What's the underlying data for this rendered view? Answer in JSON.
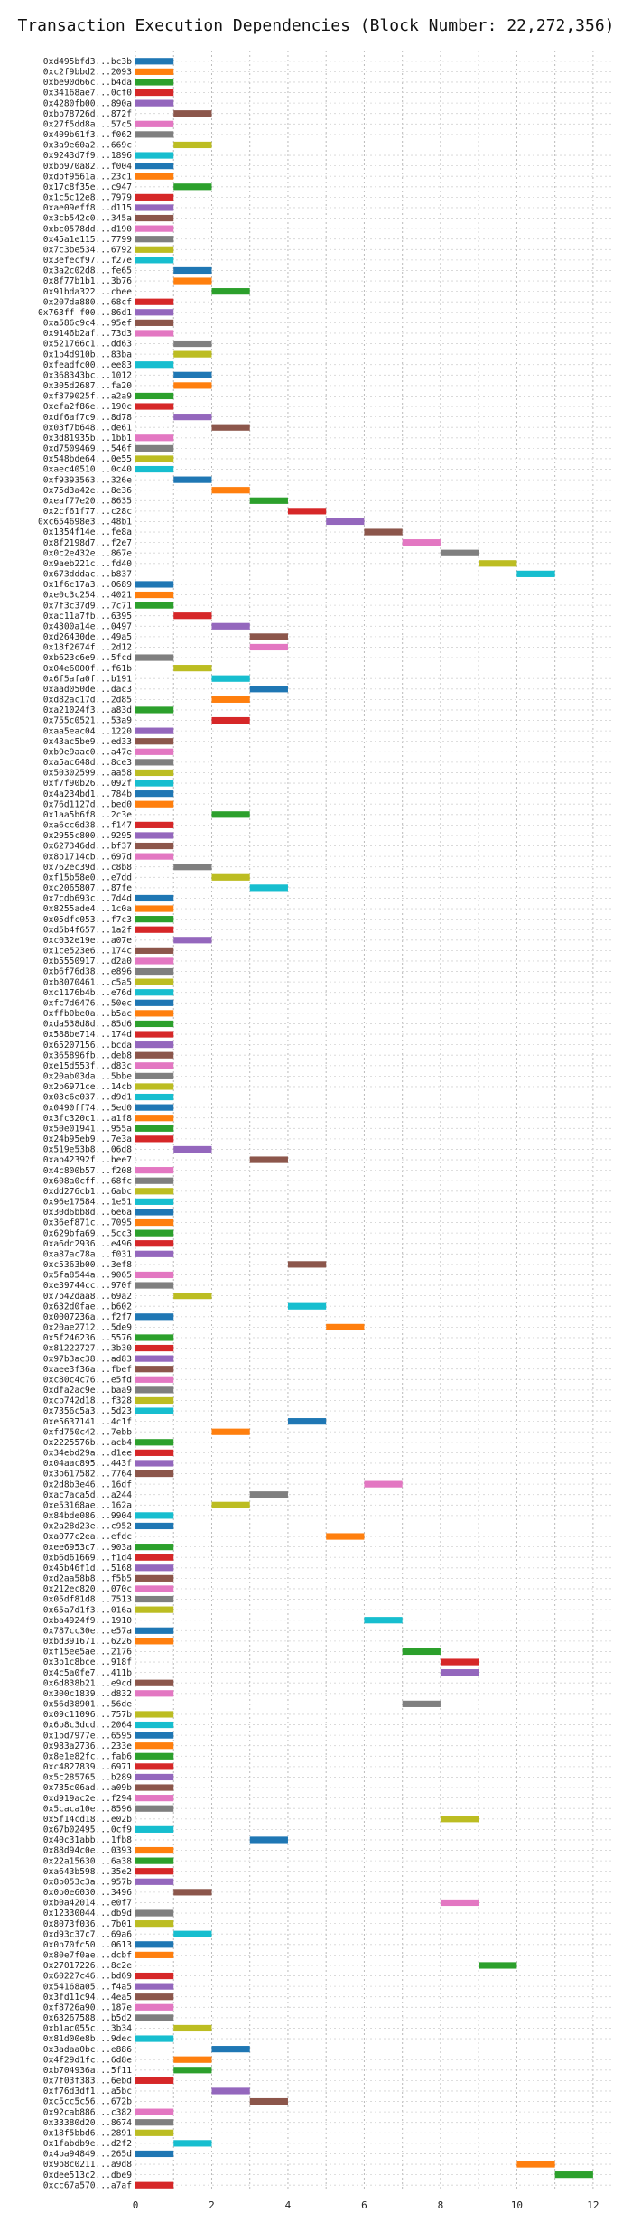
{
  "chart_data": {
    "type": "gantt",
    "title": "Transaction Execution Dependencies (Block Number: 22,272,356)",
    "xlim": [
      0,
      12.5
    ],
    "x_ticks": [
      0,
      2,
      4,
      6,
      8,
      10,
      12
    ],
    "grid": true,
    "palette": [
      "#1f77b4",
      "#ff7f0e",
      "#2ca02c",
      "#d62728",
      "#9467bd",
      "#8c564b",
      "#e377c2",
      "#7f7f7f",
      "#bcbd22",
      "#17becf"
    ],
    "transactions": [
      {
        "label": "0xd495bfd3...bc3b",
        "start": 0
      },
      {
        "label": "0xc2f9bbd2...2093",
        "start": 0
      },
      {
        "label": "0xbe90d66c...b4da",
        "start": 0
      },
      {
        "label": "0x34168ae7...0cf0",
        "start": 0
      },
      {
        "label": "0x4280fb00...890a",
        "start": 0
      },
      {
        "label": "0xbb78726d...872f",
        "start": 1
      },
      {
        "label": "0x27f5dd8a...57c5",
        "start": 0
      },
      {
        "label": "0x409b61f3...f062",
        "start": 0
      },
      {
        "label": "0x3a9e60a2...669c",
        "start": 1
      },
      {
        "label": "0x9243d7f9...1896",
        "start": 0
      },
      {
        "label": "0xbb970a82...f004",
        "start": 0
      },
      {
        "label": "0xdbf9561a...23c1",
        "start": 0
      },
      {
        "label": "0x17c8f35e...c947",
        "start": 1
      },
      {
        "label": "0x1c5c12e8...7979",
        "start": 0
      },
      {
        "label": "0xae09eff8...d115",
        "start": 0
      },
      {
        "label": "0x3cb542c0...345a",
        "start": 0
      },
      {
        "label": "0xbc0578dd...d190",
        "start": 0
      },
      {
        "label": "0x45a1e115...7799",
        "start": 0
      },
      {
        "label": "0x7c3be534...6792",
        "start": 0
      },
      {
        "label": "0x3efecf97...f27e",
        "start": 0
      },
      {
        "label": "0x3a2c02d8...fe65",
        "start": 1
      },
      {
        "label": "0x8f77b1b1...3b76",
        "start": 1
      },
      {
        "label": "0x91bda322...cbee",
        "start": 2
      },
      {
        "label": "0x207da880...68cf",
        "start": 0
      },
      {
        "label": "0x763ff f00...86d1",
        "start": 0
      },
      {
        "label": "0xa586c9c4...95ef",
        "start": 0
      },
      {
        "label": "0x9146b2af...73d3",
        "start": 0
      },
      {
        "label": "0x521766c1...dd63",
        "start": 1
      },
      {
        "label": "0x1b4d910b...83ba",
        "start": 1
      },
      {
        "label": "0xfeadfc00...ee83",
        "start": 0
      },
      {
        "label": "0x368343bc...1012",
        "start": 1
      },
      {
        "label": "0x305d2687...fa20",
        "start": 1
      },
      {
        "label": "0xf379025f...a2a9",
        "start": 0
      },
      {
        "label": "0xefa2f86e...190c",
        "start": 0
      },
      {
        "label": "0xdf6af7c9...8d78",
        "start": 1
      },
      {
        "label": "0x03f7b648...de61",
        "start": 2
      },
      {
        "label": "0x3d81935b...1bb1",
        "start": 0
      },
      {
        "label": "0xd7509469...546f",
        "start": 0
      },
      {
        "label": "0x548bde64...0e55",
        "start": 0
      },
      {
        "label": "0xaec40510...0c40",
        "start": 0
      },
      {
        "label": "0xf9393563...326e",
        "start": 1
      },
      {
        "label": "0x75d3a42e...8e36",
        "start": 2
      },
      {
        "label": "0xeaf77e20...8635",
        "start": 3
      },
      {
        "label": "0x2cf61f77...c28c",
        "start": 4
      },
      {
        "label": "0xc654698e3...48b1",
        "start": 5
      },
      {
        "label": "0x1354f14e...fe8a",
        "start": 6
      },
      {
        "label": "0x8f2198d7...f2e7",
        "start": 7
      },
      {
        "label": "0x0c2e432e...867e",
        "start": 8
      },
      {
        "label": "0x9aeb221c...fd40",
        "start": 9
      },
      {
        "label": "0x673dddac...b837",
        "start": 10
      },
      {
        "label": "0x1f6c17a3...0689",
        "start": 0
      },
      {
        "label": "0xe0c3c254...4021",
        "start": 0
      },
      {
        "label": "0x7f3c37d9...7c71",
        "start": 0
      },
      {
        "label": "0xac11a7fb...6395",
        "start": 1
      },
      {
        "label": "0x4300a14e...0497",
        "start": 2
      },
      {
        "label": "0xd26430de...49a5",
        "start": 3
      },
      {
        "label": "0x18f2674f...2d12",
        "start": 3
      },
      {
        "label": "0xb623c6e9...5fcd",
        "start": 0
      },
      {
        "label": "0x04e6000f...f61b",
        "start": 1
      },
      {
        "label": "0x6f5afa0f...b191",
        "start": 2
      },
      {
        "label": "0xaad050de...dac3",
        "start": 3
      },
      {
        "label": "0xd82ac17d...2d85",
        "start": 2
      },
      {
        "label": "0xa21024f3...a83d",
        "start": 0
      },
      {
        "label": "0x755c0521...53a9",
        "start": 2
      },
      {
        "label": "0xaa5eac04...1220",
        "start": 0
      },
      {
        "label": "0x43ac5be9...ed33",
        "start": 0
      },
      {
        "label": "0xb9e9aac0...a47e",
        "start": 0
      },
      {
        "label": "0xa5ac648d...8ce3",
        "start": 0
      },
      {
        "label": "0x50302599...aa58",
        "start": 0
      },
      {
        "label": "0xf7f90b26...092f",
        "start": 0
      },
      {
        "label": "0x4a234bd1...784b",
        "start": 0
      },
      {
        "label": "0x76d1127d...bed0",
        "start": 0
      },
      {
        "label": "0x1aa5b6f8...2c3e",
        "start": 2
      },
      {
        "label": "0xa6cc6d38...f147",
        "start": 0
      },
      {
        "label": "0x2955c800...9295",
        "start": 0
      },
      {
        "label": "0x627346dd...bf37",
        "start": 0
      },
      {
        "label": "0x8b1714cb...697d",
        "start": 0
      },
      {
        "label": "0x762ec39d...c8b8",
        "start": 1
      },
      {
        "label": "0xf15b58e0...e7dd",
        "start": 2
      },
      {
        "label": "0xc2065807...87fe",
        "start": 3
      },
      {
        "label": "0x7cdb693c...7d4d",
        "start": 0
      },
      {
        "label": "0x8255ade4...1c0a",
        "start": 0
      },
      {
        "label": "0x05dfc053...f7c3",
        "start": 0
      },
      {
        "label": "0xd5b4f657...1a2f",
        "start": 0
      },
      {
        "label": "0xc032e19e...a07e",
        "start": 1
      },
      {
        "label": "0x1ce523e6...174c",
        "start": 0
      },
      {
        "label": "0xb5550917...d2a0",
        "start": 0
      },
      {
        "label": "0xb6f76d38...e896",
        "start": 0
      },
      {
        "label": "0xb8070461...c5a5",
        "start": 0
      },
      {
        "label": "0xc1176b4b...e76d",
        "start": 0
      },
      {
        "label": "0xfc7d6476...50ec",
        "start": 0
      },
      {
        "label": "0xffb0be0a...b5ac",
        "start": 0
      },
      {
        "label": "0xda538d8d...85d6",
        "start": 0
      },
      {
        "label": "0x588be714...174d",
        "start": 0
      },
      {
        "label": "0x65207156...bcda",
        "start": 0
      },
      {
        "label": "0x365896fb...deb8",
        "start": 0
      },
      {
        "label": "0xe15d553f...d83c",
        "start": 0
      },
      {
        "label": "0x20ab03da...5bbe",
        "start": 0
      },
      {
        "label": "0x2b6971ce...14cb",
        "start": 0
      },
      {
        "label": "0x03c6e037...d9d1",
        "start": 0
      },
      {
        "label": "0x0490ff74...5ed0",
        "start": 0
      },
      {
        "label": "0x3fc320c1...a1f8",
        "start": 0
      },
      {
        "label": "0x50e01941...955a",
        "start": 0
      },
      {
        "label": "0x24b95eb9...7e3a",
        "start": 0
      },
      {
        "label": "0x519e53b8...06d8",
        "start": 1
      },
      {
        "label": "0xab42392f...bee7",
        "start": 3
      },
      {
        "label": "0x4c800b57...f208",
        "start": 0
      },
      {
        "label": "0x608a0cff...68fc",
        "start": 0
      },
      {
        "label": "0xdd276cb1...6abc",
        "start": 0
      },
      {
        "label": "0x96e17584...1e51",
        "start": 0
      },
      {
        "label": "0x30d6bb8d...6e6a",
        "start": 0
      },
      {
        "label": "0x36ef871c...7095",
        "start": 0
      },
      {
        "label": "0x629bfa69...5cc3",
        "start": 0
      },
      {
        "label": "0xa6dc2936...e496",
        "start": 0
      },
      {
        "label": "0xa87ac78a...f031",
        "start": 0
      },
      {
        "label": "0xc5363b00...3ef8",
        "start": 4
      },
      {
        "label": "0x5fa8544a...9065",
        "start": 0
      },
      {
        "label": "0xe39744cc...970f",
        "start": 0
      },
      {
        "label": "0x7b42daa8...69a2",
        "start": 1
      },
      {
        "label": "0x632d0fae...b602",
        "start": 4
      },
      {
        "label": "0x0007236a...f2f7",
        "start": 0
      },
      {
        "label": "0x20ae2712...5de9",
        "start": 5
      },
      {
        "label": "0x5f246236...5576",
        "start": 0
      },
      {
        "label": "0x81222727...3b30",
        "start": 0
      },
      {
        "label": "0x97b3ac38...ad83",
        "start": 0
      },
      {
        "label": "0xaee3f36a...fbef",
        "start": 0
      },
      {
        "label": "0xc80c4c76...e5fd",
        "start": 0
      },
      {
        "label": "0xdfa2ac9e...baa9",
        "start": 0
      },
      {
        "label": "0xcb742d18...f328",
        "start": 0
      },
      {
        "label": "0x7356c5a3...5d23",
        "start": 0
      },
      {
        "label": "0xe5637141...4c1f",
        "start": 4
      },
      {
        "label": "0xfd750c42...7ebb",
        "start": 2
      },
      {
        "label": "0x2225576b...acb4",
        "start": 0
      },
      {
        "label": "0x34ebd29a...d1ee",
        "start": 0
      },
      {
        "label": "0x04aac895...443f",
        "start": 0
      },
      {
        "label": "0x3b617582...7764",
        "start": 0
      },
      {
        "label": "0x2d8b3e46...16df",
        "start": 6
      },
      {
        "label": "0xac7aca5d...a244",
        "start": 3
      },
      {
        "label": "0xe53168ae...162a",
        "start": 2
      },
      {
        "label": "0x84bde086...9904",
        "start": 0
      },
      {
        "label": "0x2a28d23e...c952",
        "start": 0
      },
      {
        "label": "0xa077c2ea...efdc",
        "start": 5
      },
      {
        "label": "0xee6953c7...903a",
        "start": 0
      },
      {
        "label": "0xb6d61669...f1d4",
        "start": 0
      },
      {
        "label": "0x45b46f1d...5168",
        "start": 0
      },
      {
        "label": "0xd2aa58b8...f5b5",
        "start": 0
      },
      {
        "label": "0x212ec820...070c",
        "start": 0
      },
      {
        "label": "0x05df81d8...7513",
        "start": 0
      },
      {
        "label": "0x65a7d1f3...016a",
        "start": 0
      },
      {
        "label": "0xba4924f9...1910",
        "start": 6
      },
      {
        "label": "0x787cc30e...e57a",
        "start": 0
      },
      {
        "label": "0xbd391671...6226",
        "start": 0
      },
      {
        "label": "0xf15ee5ae...2176",
        "start": 7
      },
      {
        "label": "0x3b1c8bce...918f",
        "start": 8
      },
      {
        "label": "0x4c5a0fe7...411b",
        "start": 8
      },
      {
        "label": "0x6d838b21...e9cd",
        "start": 0
      },
      {
        "label": "0x300c1839...d832",
        "start": 0
      },
      {
        "label": "0x56d38901...56de",
        "start": 7
      },
      {
        "label": "0x09c11096...757b",
        "start": 0
      },
      {
        "label": "0x6b8c3dcd...2064",
        "start": 0
      },
      {
        "label": "0x1bd7977e...6595",
        "start": 0
      },
      {
        "label": "0x983a2736...233e",
        "start": 0
      },
      {
        "label": "0x8e1e82fc...fab6",
        "start": 0
      },
      {
        "label": "0xc4827839...6971",
        "start": 0
      },
      {
        "label": "0x5c285765...b289",
        "start": 0
      },
      {
        "label": "0x735c06ad...a09b",
        "start": 0
      },
      {
        "label": "0xd919ac2e...f294",
        "start": 0
      },
      {
        "label": "0x5caca10e...8596",
        "start": 0
      },
      {
        "label": "0x5f14cd18...e02b",
        "start": 8
      },
      {
        "label": "0x67b02495...0cf9",
        "start": 0
      },
      {
        "label": "0x40c31abb...1fb8",
        "start": 3
      },
      {
        "label": "0x88d94c0e...0393",
        "start": 0
      },
      {
        "label": "0x22a15630...6a38",
        "start": 0
      },
      {
        "label": "0xa643b598...35e2",
        "start": 0
      },
      {
        "label": "0x8b053c3a...957b",
        "start": 0
      },
      {
        "label": "0x0b0e6030...3496",
        "start": 1
      },
      {
        "label": "0xb0a42014...e0f7",
        "start": 8
      },
      {
        "label": "0x12330044...db9d",
        "start": 0
      },
      {
        "label": "0x8073f036...7b01",
        "start": 0
      },
      {
        "label": "0xd93c37c7...69a6",
        "start": 1
      },
      {
        "label": "0x0b70fc50...0613",
        "start": 0
      },
      {
        "label": "0x80e7f0ae...dcbf",
        "start": 0
      },
      {
        "label": "0x27017226...8c2e",
        "start": 9
      },
      {
        "label": "0x60227c46...bd69",
        "start": 0
      },
      {
        "label": "0x54168a05...f4a5",
        "start": 0
      },
      {
        "label": "0x3fd11c94...4ea5",
        "start": 0
      },
      {
        "label": "0xf8726a90...187e",
        "start": 0
      },
      {
        "label": "0x63267588...b5d2",
        "start": 0
      },
      {
        "label": "0xb1ac055c...3b34",
        "start": 1
      },
      {
        "label": "0x81d00e8b...9dec",
        "start": 0
      },
      {
        "label": "0x3adaa0bc...e886",
        "start": 2
      },
      {
        "label": "0x4f29d1fc...6d8e",
        "start": 1
      },
      {
        "label": "0xb704936a...5f11",
        "start": 1
      },
      {
        "label": "0x7f03f383...6ebd",
        "start": 0
      },
      {
        "label": "0xf76d3df1...a5bc",
        "start": 2
      },
      {
        "label": "0xc5cc5c56...672b",
        "start": 3
      },
      {
        "label": "0x92cab886...c382",
        "start": 0
      },
      {
        "label": "0x33380d20...8674",
        "start": 0
      },
      {
        "label": "0x18f5bbd6...2891",
        "start": 0
      },
      {
        "label": "0x1fabdb9e...d2f2",
        "start": 1
      },
      {
        "label": "0x4ba94849...265d",
        "start": 0
      },
      {
        "label": "0x9b8c0211...a9d8",
        "start": 10
      },
      {
        "label": "0xdee513c2...dbe9",
        "start": 11
      },
      {
        "label": "0xcc67a570...a7af",
        "start": 0
      }
    ]
  }
}
